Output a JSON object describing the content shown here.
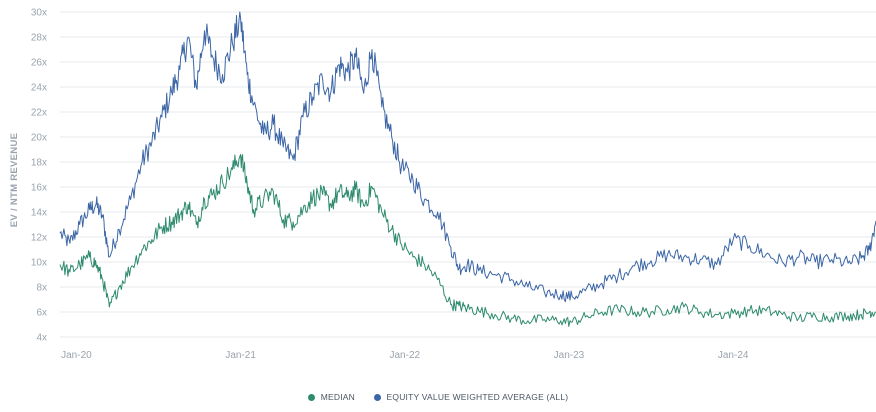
{
  "chart_data": {
    "type": "line",
    "title": "",
    "ylabel": "EV / NTM REVENUE",
    "xlabel": "",
    "ylim": [
      4,
      30
    ],
    "yticks": [
      "30x",
      "28x",
      "26x",
      "24x",
      "22x",
      "20x",
      "18x",
      "16x",
      "14x",
      "12x",
      "10x",
      "8x",
      "6x",
      "4x"
    ],
    "ytick_values": [
      30,
      28,
      26,
      24,
      22,
      20,
      18,
      16,
      14,
      12,
      10,
      8,
      6,
      4
    ],
    "xticks": [
      "Jan-20",
      "Jan-21",
      "Jan-22",
      "Jan-23",
      "Jan-24"
    ],
    "xtick_values": [
      2020.0,
      2021.0,
      2022.0,
      2023.0,
      2024.0
    ],
    "xlim": [
      2019.9,
      2024.87
    ],
    "legend": [
      "MEDIAN",
      "EQUITY VALUE WEIGHTED AVERAGE (ALL)"
    ],
    "colors": {
      "median": "#2e8b6e",
      "weighted": "#3c66a6"
    },
    "series": [
      {
        "name": "EQUITY VALUE WEIGHTED AVERAGE (ALL)",
        "color": "#3c66a6",
        "x": [
          2019.9,
          2019.96,
          2020.02,
          2020.08,
          2020.12,
          2020.16,
          2020.2,
          2020.26,
          2020.33,
          2020.4,
          2020.46,
          2020.52,
          2020.58,
          2020.63,
          2020.68,
          2020.73,
          2020.78,
          2020.83,
          2020.89,
          2020.95,
          2021.0,
          2021.04,
          2021.08,
          2021.14,
          2021.2,
          2021.26,
          2021.32,
          2021.38,
          2021.44,
          2021.5,
          2021.55,
          2021.6,
          2021.65,
          2021.7,
          2021.75,
          2021.8,
          2021.86,
          2021.92,
          2021.98,
          2022.05,
          2022.12,
          2022.2,
          2022.28,
          2022.33,
          2022.38,
          2022.45,
          2022.55,
          2022.65,
          2022.75,
          2022.85,
          2022.95,
          2023.02,
          2023.1,
          2023.2,
          2023.3,
          2023.4,
          2023.5,
          2023.6,
          2023.7,
          2023.8,
          2023.9,
          2024.0,
          2024.1,
          2024.2,
          2024.3,
          2024.4,
          2024.5,
          2024.6,
          2024.7,
          2024.78,
          2024.83,
          2024.87
        ],
        "values": [
          12.3,
          11.5,
          13.0,
          14.2,
          14.6,
          13.6,
          10.4,
          12.6,
          15.0,
          18.0,
          19.6,
          21.6,
          23.6,
          25.4,
          28.0,
          24.0,
          28.5,
          26.4,
          25.0,
          27.5,
          29.5,
          25.0,
          22.6,
          20.2,
          21.0,
          19.2,
          18.2,
          21.6,
          23.2,
          24.6,
          23.6,
          25.8,
          25.2,
          26.4,
          23.5,
          27.0,
          22.4,
          20.0,
          17.6,
          16.6,
          15.0,
          14.0,
          11.2,
          9.5,
          9.8,
          9.3,
          9.0,
          8.6,
          8.0,
          7.6,
          7.4,
          7.2,
          7.7,
          8.3,
          8.9,
          9.7,
          10.1,
          10.6,
          10.4,
          10.2,
          9.8,
          11.8,
          11.3,
          10.6,
          10.0,
          10.4,
          10.0,
          10.2,
          9.9,
          10.3,
          11.0,
          13.3
        ]
      },
      {
        "name": "MEDIAN",
        "color": "#2e8b6e",
        "x": [
          2019.9,
          2019.96,
          2020.02,
          2020.08,
          2020.12,
          2020.16,
          2020.2,
          2020.26,
          2020.33,
          2020.4,
          2020.46,
          2020.52,
          2020.58,
          2020.63,
          2020.68,
          2020.73,
          2020.78,
          2020.83,
          2020.89,
          2020.95,
          2021.0,
          2021.04,
          2021.08,
          2021.14,
          2021.2,
          2021.26,
          2021.32,
          2021.38,
          2021.44,
          2021.5,
          2021.55,
          2021.6,
          2021.65,
          2021.7,
          2021.75,
          2021.8,
          2021.86,
          2021.92,
          2021.98,
          2022.05,
          2022.12,
          2022.2,
          2022.28,
          2022.33,
          2022.38,
          2022.45,
          2022.55,
          2022.65,
          2022.75,
          2022.85,
          2022.95,
          2023.02,
          2023.1,
          2023.2,
          2023.3,
          2023.4,
          2023.5,
          2023.6,
          2023.7,
          2023.8,
          2023.9,
          2024.0,
          2024.1,
          2024.2,
          2024.3,
          2024.4,
          2024.5,
          2024.6,
          2024.7,
          2024.78,
          2024.83,
          2024.87
        ],
        "values": [
          9.8,
          9.2,
          9.8,
          10.4,
          9.8,
          8.6,
          6.4,
          8.0,
          9.5,
          11.0,
          11.8,
          12.8,
          13.2,
          13.8,
          14.6,
          13.0,
          15.0,
          15.4,
          16.4,
          17.4,
          18.6,
          16.2,
          14.2,
          15.0,
          15.6,
          13.4,
          13.2,
          14.2,
          15.2,
          15.4,
          14.6,
          15.6,
          15.2,
          15.8,
          14.5,
          16.0,
          14.0,
          12.6,
          11.4,
          10.4,
          9.8,
          8.6,
          6.6,
          6.5,
          6.3,
          6.1,
          5.8,
          5.5,
          5.3,
          5.4,
          5.3,
          5.2,
          5.6,
          6.0,
          6.2,
          6.0,
          6.0,
          6.2,
          6.4,
          6.0,
          5.8,
          5.9,
          6.1,
          6.1,
          5.8,
          5.5,
          5.7,
          5.6,
          5.7,
          5.8,
          6.0,
          6.0
        ]
      }
    ]
  }
}
